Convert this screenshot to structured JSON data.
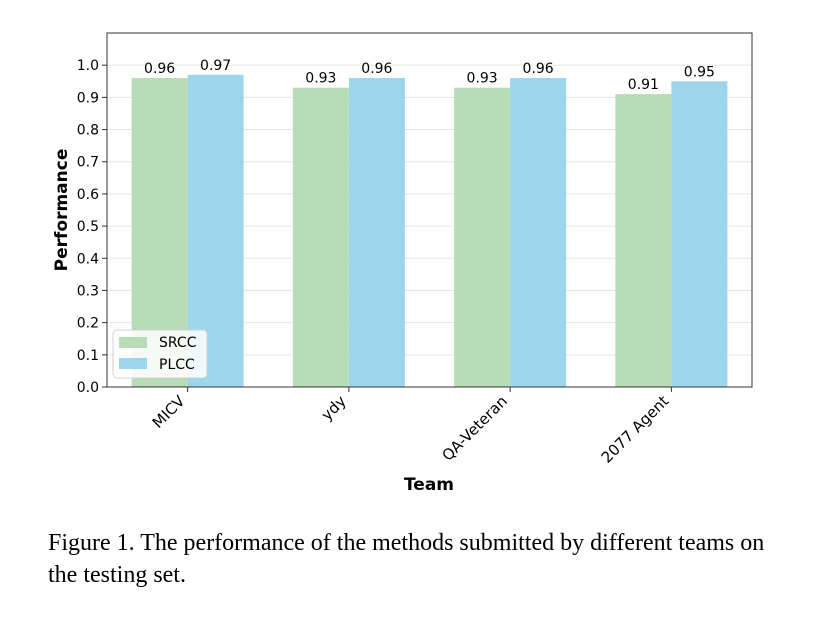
{
  "chart_data": {
    "type": "bar",
    "categories": [
      "MICV",
      "ydy",
      "QA-Veteran",
      "2077 Agent"
    ],
    "series": [
      {
        "name": "SRCC",
        "values": [
          0.96,
          0.93,
          0.93,
          0.91
        ],
        "labels": [
          "0.96",
          "0.93",
          "0.93",
          "0.91"
        ],
        "color": "#b8ddb6"
      },
      {
        "name": "PLCC",
        "values": [
          0.97,
          0.96,
          0.96,
          0.95
        ],
        "labels": [
          "0.97",
          "0.96",
          "0.96",
          "0.95"
        ],
        "color": "#9dd5ec"
      }
    ],
    "xlabel": "Team",
    "ylabel": "Performance",
    "ylim": [
      0,
      1.1
    ],
    "yticks": [
      "0.0",
      "0.1",
      "0.2",
      "0.3",
      "0.4",
      "0.5",
      "0.6",
      "0.7",
      "0.8",
      "0.9",
      "1.0"
    ],
    "grid": true,
    "legend_position": "lower-left"
  },
  "caption": "Figure 1. The performance of the methods submitted by different teams on the testing set."
}
